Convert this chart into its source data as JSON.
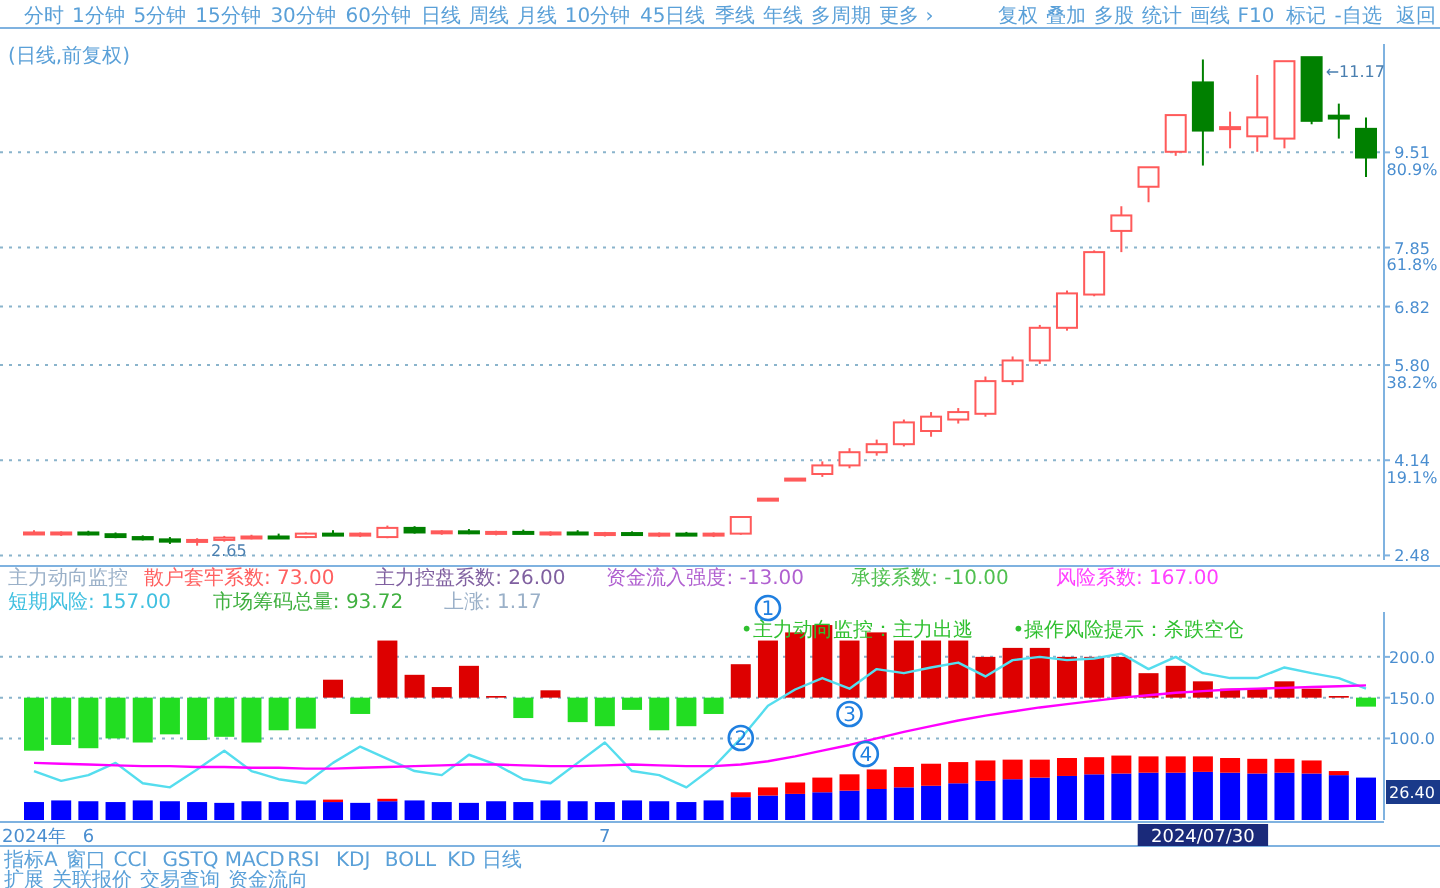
{
  "chart_data": [
    {
      "type": "candlestick",
      "title": "(日线,前复权)",
      "categories": [
        null,
        null,
        null,
        null,
        null,
        null,
        null,
        null,
        null,
        null,
        null,
        null,
        null,
        null,
        null,
        null,
        null,
        null,
        null,
        null,
        null,
        null,
        null,
        null,
        null,
        null,
        null,
        null,
        null,
        null,
        null,
        null,
        null,
        null,
        null,
        null,
        null,
        null,
        null,
        null,
        null,
        null,
        null,
        null,
        null,
        null,
        null,
        null,
        null,
        null
      ],
      "ohlc": [
        [
          2.88,
          2.92,
          2.84,
          2.86
        ],
        [
          2.86,
          2.9,
          2.82,
          2.88
        ],
        [
          2.88,
          2.91,
          2.83,
          2.85
        ],
        [
          2.85,
          2.88,
          2.78,
          2.8
        ],
        [
          2.8,
          2.83,
          2.74,
          2.76
        ],
        [
          2.76,
          2.8,
          2.68,
          2.72
        ],
        [
          2.72,
          2.78,
          2.65,
          2.75
        ],
        [
          2.75,
          2.82,
          2.72,
          2.79
        ],
        [
          2.79,
          2.84,
          2.76,
          2.81
        ],
        [
          2.81,
          2.86,
          2.78,
          2.8
        ],
        [
          2.8,
          2.88,
          2.78,
          2.86
        ],
        [
          2.86,
          2.92,
          2.83,
          2.84
        ],
        [
          2.84,
          2.88,
          2.8,
          2.86
        ],
        [
          2.8,
          3.0,
          2.78,
          2.96
        ],
        [
          2.96,
          2.99,
          2.86,
          2.88
        ],
        [
          2.88,
          2.92,
          2.84,
          2.9
        ],
        [
          2.9,
          2.94,
          2.85,
          2.87
        ],
        [
          2.87,
          2.91,
          2.83,
          2.89
        ],
        [
          2.89,
          2.93,
          2.85,
          2.86
        ],
        [
          2.86,
          2.9,
          2.82,
          2.88
        ],
        [
          2.88,
          2.92,
          2.84,
          2.85
        ],
        [
          2.85,
          2.89,
          2.81,
          2.87
        ],
        [
          2.87,
          2.9,
          2.83,
          2.84
        ],
        [
          2.84,
          2.88,
          2.8,
          2.86
        ],
        [
          2.86,
          2.89,
          2.82,
          2.83
        ],
        [
          2.83,
          2.88,
          2.8,
          2.86
        ],
        [
          2.86,
          3.15,
          2.84,
          3.15
        ],
        [
          3.47,
          3.47,
          3.47,
          3.47
        ],
        [
          3.82,
          3.82,
          3.82,
          3.82
        ],
        [
          3.9,
          4.12,
          3.85,
          4.05
        ],
        [
          4.05,
          4.35,
          4.0,
          4.28
        ],
        [
          4.28,
          4.5,
          4.22,
          4.42
        ],
        [
          4.42,
          4.85,
          4.38,
          4.8
        ],
        [
          4.65,
          4.98,
          4.55,
          4.9
        ],
        [
          4.85,
          5.05,
          4.78,
          4.98
        ],
        [
          4.95,
          5.6,
          4.9,
          5.52
        ],
        [
          5.52,
          5.95,
          5.45,
          5.88
        ],
        [
          5.88,
          6.5,
          5.82,
          6.45
        ],
        [
          6.45,
          7.1,
          6.4,
          7.05
        ],
        [
          7.03,
          7.8,
          7.0,
          7.77
        ],
        [
          8.14,
          8.57,
          7.77,
          8.41
        ],
        [
          8.91,
          9.25,
          8.64,
          9.25
        ],
        [
          9.52,
          10.16,
          9.45,
          10.16
        ],
        [
          10.73,
          11.13,
          9.28,
          9.89
        ],
        [
          9.92,
          10.22,
          9.58,
          9.95
        ],
        [
          9.79,
          10.86,
          9.52,
          10.12
        ],
        [
          9.75,
          11.1,
          9.58,
          11.1
        ],
        [
          11.17,
          11.17,
          10.0,
          10.06
        ],
        [
          10.15,
          10.36,
          9.75,
          10.1
        ],
        [
          9.92,
          10.12,
          9.08,
          9.42
        ]
      ],
      "colors": [
        "#ff5a5a",
        "#ff5a5a",
        "#008000",
        "#008000",
        "#008000",
        "#008000",
        "#ff5a5a",
        "#ff5a5a",
        "#ff5a5a",
        "#008000",
        "#ff5a5a",
        "#008000",
        "#ff5a5a",
        "#ff5a5a",
        "#008000",
        "#ff5a5a",
        "#008000",
        "#ff5a5a",
        "#008000",
        "#ff5a5a",
        "#008000",
        "#ff5a5a",
        "#008000",
        "#ff5a5a",
        "#008000",
        "#ff5a5a",
        "#ff5a5a",
        "#ff5a5a",
        "#ff5a5a",
        "#ff5a5a",
        "#ff5a5a",
        "#ff5a5a",
        "#ff5a5a",
        "#ff5a5a",
        "#ff5a5a",
        "#ff5a5a",
        "#ff5a5a",
        "#ff5a5a",
        "#ff5a5a",
        "#ff5a5a",
        "#ff5a5a",
        "#ff5a5a",
        "#ff5a5a",
        "#008000",
        "#ff5a5a",
        "#ff5a5a",
        "#ff5a5a",
        "#008000",
        "#008000",
        "#008000"
      ],
      "ylim": [
        2.4,
        11.4
      ],
      "yticks": [
        {
          "value": 2.48,
          "label": "2.48"
        },
        {
          "value": 4.14,
          "label": "4.14"
        },
        {
          "value": 5.8,
          "label": "5.80"
        },
        {
          "value": 6.82,
          "label": "6.82"
        },
        {
          "value": 7.85,
          "label": "7.85"
        },
        {
          "value": 9.51,
          "label": "9.51"
        }
      ],
      "y2lim": [
        -0.92,
        102.6
      ],
      "y2ticks": [
        {
          "value": 19.1,
          "label": "19.1%"
        },
        {
          "value": 38.2,
          "label": "38.2%"
        },
        {
          "value": 61.8,
          "label": "61.8%"
        },
        {
          "value": 80.9,
          "label": "80.9%"
        }
      ],
      "grid": "y",
      "tick_labels": "y",
      "annotations": [
        "←11.17",
        "2.65"
      ]
    },
    {
      "type": "bar",
      "categories": [
        "2024年",
        null,
        "6",
        null,
        null,
        null,
        null,
        null,
        null,
        null,
        null,
        null,
        null,
        null,
        null,
        null,
        null,
        null,
        null,
        null,
        null,
        "7",
        null,
        null,
        null,
        null,
        null,
        null,
        null,
        null,
        null,
        null,
        null,
        null,
        null,
        null,
        null,
        null,
        null,
        null,
        null,
        null,
        null,
        "2024/07/30",
        null,
        null,
        null,
        null,
        null,
        null
      ],
      "series": [
        {
          "type": "bar",
          "base": [
            150,
            150,
            150,
            150,
            150,
            150,
            150,
            150,
            150,
            150,
            150,
            150,
            150,
            150,
            150,
            150,
            150,
            150,
            150,
            150,
            150,
            150,
            150,
            150,
            150,
            150,
            150,
            150,
            150,
            150,
            150,
            150,
            150,
            150,
            150,
            150,
            150,
            150,
            150,
            150,
            150,
            150,
            150,
            150,
            150,
            150,
            150,
            150,
            150,
            150
          ],
          "values": [
            -65,
            -58,
            -62,
            -50,
            -55,
            -45,
            -52,
            -48,
            -55,
            -40,
            -38,
            22,
            -20,
            70,
            28,
            13,
            39,
            2,
            -25,
            9,
            -30,
            -35,
            -15,
            -40,
            -35,
            -20,
            41,
            70,
            80,
            89,
            70,
            80,
            70,
            70,
            70,
            50,
            61,
            61,
            50,
            50,
            50,
            30,
            39,
            20,
            11,
            11,
            20,
            11,
            2,
            -11
          ],
          "colors": [
            "#22dd22",
            "#22dd22",
            "#22dd22",
            "#22dd22",
            "#22dd22",
            "#22dd22",
            "#22dd22",
            "#22dd22",
            "#22dd22",
            "#22dd22",
            "#22dd22",
            "#dd0000",
            "#22dd22",
            "#dd0000",
            "#dd0000",
            "#dd0000",
            "#dd0000",
            "#dd0000",
            "#22dd22",
            "#dd0000",
            "#22dd22",
            "#22dd22",
            "#22dd22",
            "#22dd22",
            "#22dd22",
            "#22dd22",
            "#dd0000",
            "#dd0000",
            "#dd0000",
            "#dd0000",
            "#dd0000",
            "#dd0000",
            "#dd0000",
            "#dd0000",
            "#dd0000",
            "#dd0000",
            "#dd0000",
            "#dd0000",
            "#dd0000",
            "#dd0000",
            "#dd0000",
            "#dd0000",
            "#dd0000",
            "#dd0000",
            "#dd0000",
            "#dd0000",
            "#dd0000",
            "#dd0000",
            "#dd0000",
            "#22dd22"
          ]
        },
        {
          "type": "bar",
          "color": "#0000ff",
          "base": [
            0,
            0,
            0,
            0,
            0,
            0,
            0,
            0,
            0,
            0,
            0,
            0,
            0,
            0,
            0,
            0,
            0,
            0,
            0,
            0,
            0,
            0,
            0,
            0,
            0,
            0,
            0,
            0,
            0,
            0,
            0,
            0,
            0,
            0,
            0,
            0,
            0,
            0,
            0,
            0,
            0,
            0,
            0,
            0,
            0,
            0,
            0,
            0,
            0,
            0
          ],
          "values": [
            22,
            24,
            23,
            22,
            24,
            23,
            22,
            21,
            23,
            22,
            24,
            22,
            21,
            23,
            24,
            22,
            21,
            23,
            22,
            24,
            23,
            22,
            24,
            23,
            22,
            24,
            28,
            30,
            32,
            34,
            36,
            38,
            40,
            42,
            45,
            48,
            50,
            52,
            54,
            56,
            57,
            58,
            58,
            59,
            58,
            57,
            58,
            57,
            55,
            52
          ]
        },
        {
          "type": "bar",
          "color": "#ff0000",
          "base": [
            null,
            null,
            null,
            null,
            null,
            null,
            null,
            null,
            null,
            null,
            null,
            22,
            null,
            23,
            null,
            null,
            null,
            null,
            null,
            null,
            null,
            null,
            null,
            null,
            null,
            null,
            28,
            30,
            32,
            34,
            36,
            38,
            40,
            42,
            45,
            48,
            50,
            52,
            54,
            56,
            57,
            58,
            58,
            59,
            58,
            57,
            58,
            57,
            55,
            null
          ],
          "values": [
            null,
            null,
            null,
            null,
            null,
            null,
            null,
            null,
            null,
            null,
            null,
            3,
            null,
            3,
            null,
            null,
            null,
            null,
            null,
            null,
            null,
            null,
            null,
            null,
            null,
            null,
            6,
            10,
            14,
            18,
            20,
            24,
            25,
            27,
            26,
            25,
            24,
            22,
            22,
            21,
            22,
            20,
            20,
            19,
            18,
            18,
            17,
            16,
            5,
            null
          ]
        },
        {
          "type": "line",
          "color": "#55ddee",
          "values": [
            60,
            48,
            55,
            70,
            45,
            40,
            62,
            85,
            60,
            50,
            45,
            70,
            90,
            75,
            60,
            55,
            80,
            68,
            50,
            45,
            70,
            95,
            60,
            55,
            40,
            65,
            100,
            140,
            160,
            174,
            161,
            185,
            180,
            187,
            193,
            176,
            196,
            200,
            196,
            198,
            204,
            185,
            200,
            180,
            174,
            174,
            187,
            180,
            174,
            161
          ]
        },
        {
          "type": "line",
          "color": "#ff00ff",
          "values": [
            70,
            69,
            68,
            67,
            66,
            66,
            65,
            65,
            64,
            64,
            63,
            63,
            64,
            65,
            66,
            67,
            68,
            68,
            67,
            66,
            66,
            67,
            68,
            67,
            66,
            66,
            68,
            72,
            78,
            85,
            92,
            100,
            108,
            115,
            122,
            128,
            133,
            138,
            142,
            146,
            150,
            153,
            156,
            158,
            160,
            161,
            162,
            163,
            164,
            165
          ]
        }
      ],
      "ylim": [
        0,
        255
      ],
      "yticks": [
        {
          "value": 100,
          "label": "100.0"
        },
        {
          "value": 150,
          "label": "150.0"
        },
        {
          "value": 200,
          "label": "200.0"
        }
      ],
      "grid": "y",
      "annotations": [
        "主力动向监控",
        "散户套牢系数: 73.00",
        "主力控盘系数: 26.00",
        "资金流入强度: -13.00",
        "承接系数: -10.00",
        "风险系数: 167.00",
        "短期风险: 157.00",
        "市场筹码总量: 93.72",
        "上涨: 1.17",
        "•主力动向监控：主力出逃",
        "•操作风险提示：杀跌空仓",
        "26.40",
        "1",
        "2",
        "3",
        "4"
      ]
    },
    {
      "type": "other",
      "annotations": [
        "分时",
        "1分钟",
        "5分钟",
        "15分钟",
        "30分钟",
        "60分钟",
        "日线",
        "周线",
        "月线",
        "10分钟",
        "45日线",
        "季线",
        "年线",
        "多周期",
        "更多 ›"
      ]
    },
    {
      "type": "other",
      "annotations": [
        "复权",
        "叠加",
        "多股",
        "统计",
        "画线",
        "F10",
        "标记",
        "-自选",
        "返回"
      ]
    },
    {
      "type": "other",
      "annotations": [
        "指标A",
        "窗口",
        "CCI",
        "GSTQ",
        "MACD",
        "RSI",
        "KDJ",
        "BOLL",
        "KD",
        "日线"
      ]
    },
    {
      "type": "other",
      "annotations": [
        "扩展",
        "关联报价",
        "交易查询",
        "资金流向"
      ]
    }
  ]
}
